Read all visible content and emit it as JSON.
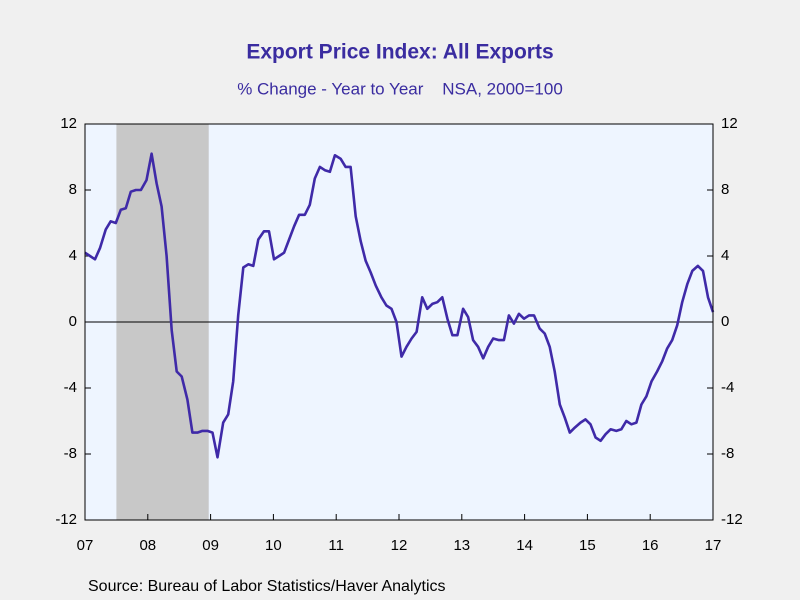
{
  "chart_data": {
    "type": "line",
    "title": "Export Price Index: All Exports",
    "subtitle": "% Change - Year to Year    NSA, 2000=100",
    "source": "Source:  Bureau of Labor Statistics/Haver Analytics",
    "x": [
      2007.0,
      2007.08,
      2007.16,
      2007.24,
      2007.33,
      2007.41,
      2007.49,
      2007.57,
      2007.65,
      2007.73,
      2007.81,
      2007.89,
      2007.98,
      2008.06,
      2008.14,
      2008.22,
      2008.3,
      2008.38,
      2008.46,
      2008.54,
      2008.63,
      2008.71,
      2008.79,
      2008.87,
      2008.95,
      2009.03,
      2009.11,
      2009.2,
      2009.28,
      2009.36,
      2009.44,
      2009.52,
      2009.6,
      2009.68,
      2009.76,
      2009.85,
      2009.93,
      2010.01,
      2010.09,
      2010.17,
      2010.25,
      2010.33,
      2010.41,
      2010.5,
      2010.58,
      2010.66,
      2010.74,
      2010.82,
      2010.9,
      2010.98,
      2011.07,
      2011.15,
      2011.23,
      2011.31,
      2011.39,
      2011.47,
      2011.55,
      2011.63,
      2011.72,
      2011.8,
      2011.88,
      2011.96,
      2012.04,
      2012.12,
      2012.2,
      2012.28,
      2012.37,
      2012.45,
      2012.53,
      2012.61,
      2012.69,
      2012.77,
      2012.85,
      2012.93,
      2013.02,
      2013.1,
      2013.18,
      2013.26,
      2013.34,
      2013.42,
      2013.5,
      2013.59,
      2013.67,
      2013.75,
      2013.83,
      2013.91,
      2013.99,
      2014.07,
      2014.15,
      2014.24,
      2014.32,
      2014.4,
      2014.48,
      2014.56,
      2014.64,
      2014.72,
      2014.8,
      2014.89,
      2014.97,
      2015.05,
      2015.13,
      2015.21,
      2015.29,
      2015.37,
      2015.46,
      2015.54,
      2015.62,
      2015.7,
      2015.78,
      2015.86,
      2015.94,
      2016.02,
      2016.11,
      2016.19,
      2016.27,
      2016.35,
      2016.43,
      2016.51,
      2016.59,
      2016.67,
      2016.76,
      2016.84,
      2016.92,
      2017.0
    ],
    "series": [
      {
        "name": "Export Price Index: All Exports",
        "color": "#3f2aa8",
        "values": [
          4.2,
          4.0,
          3.8,
          4.5,
          5.6,
          6.1,
          6.0,
          6.8,
          6.9,
          7.9,
          8.0,
          8.0,
          8.6,
          10.2,
          8.4,
          7.0,
          4.0,
          -0.5,
          -3.0,
          -3.3,
          -4.7,
          -6.7,
          -6.7,
          -6.6,
          -6.6,
          -6.7,
          -8.2,
          -6.1,
          -5.6,
          -3.6,
          0.4,
          3.3,
          3.5,
          3.4,
          5.0,
          5.5,
          5.5,
          3.8,
          4.0,
          4.2,
          5.0,
          5.8,
          6.5,
          6.5,
          7.1,
          8.7,
          9.4,
          9.2,
          9.1,
          10.1,
          9.9,
          9.4,
          9.4,
          6.4,
          4.9,
          3.7,
          3.0,
          2.2,
          1.5,
          1.0,
          0.8,
          0.0,
          -2.1,
          -1.5,
          -1.0,
          -0.6,
          1.5,
          0.8,
          1.1,
          1.2,
          1.5,
          0.2,
          -0.8,
          -0.8,
          0.8,
          0.3,
          -1.1,
          -1.5,
          -2.2,
          -1.5,
          -1.0,
          -1.1,
          -1.1,
          0.4,
          -0.1,
          0.5,
          0.2,
          0.4,
          0.4,
          -0.4,
          -0.7,
          -1.5,
          -3.0,
          -5.0,
          -5.8,
          -6.7,
          -6.4,
          -6.1,
          -5.9,
          -6.2,
          -7.0,
          -7.2,
          -6.8,
          -6.5,
          -6.6,
          -6.5,
          -6.0,
          -6.2,
          -6.1,
          -5.0,
          -4.5,
          -3.6,
          -3.0,
          -2.4,
          -1.6,
          -1.1,
          -0.2,
          1.2,
          2.3,
          3.1,
          3.4,
          3.1,
          1.5,
          0.6
        ]
      }
    ],
    "xlim": [
      2007,
      2017
    ],
    "xticks": [
      {
        "value": 2007,
        "label": "07"
      },
      {
        "value": 2008,
        "label": "08"
      },
      {
        "value": 2009,
        "label": "09"
      },
      {
        "value": 2010,
        "label": "10"
      },
      {
        "value": 2011,
        "label": "11"
      },
      {
        "value": 2012,
        "label": "12"
      },
      {
        "value": 2013,
        "label": "13"
      },
      {
        "value": 2014,
        "label": "14"
      },
      {
        "value": 2015,
        "label": "15"
      },
      {
        "value": 2016,
        "label": "16"
      },
      {
        "value": 2017,
        "label": "17"
      }
    ],
    "ylim": [
      -12,
      12
    ],
    "yticks": [
      -12,
      -8,
      -4,
      0,
      4,
      8,
      12
    ],
    "recession": [
      2007.5,
      2008.97
    ],
    "zero_line": true
  }
}
